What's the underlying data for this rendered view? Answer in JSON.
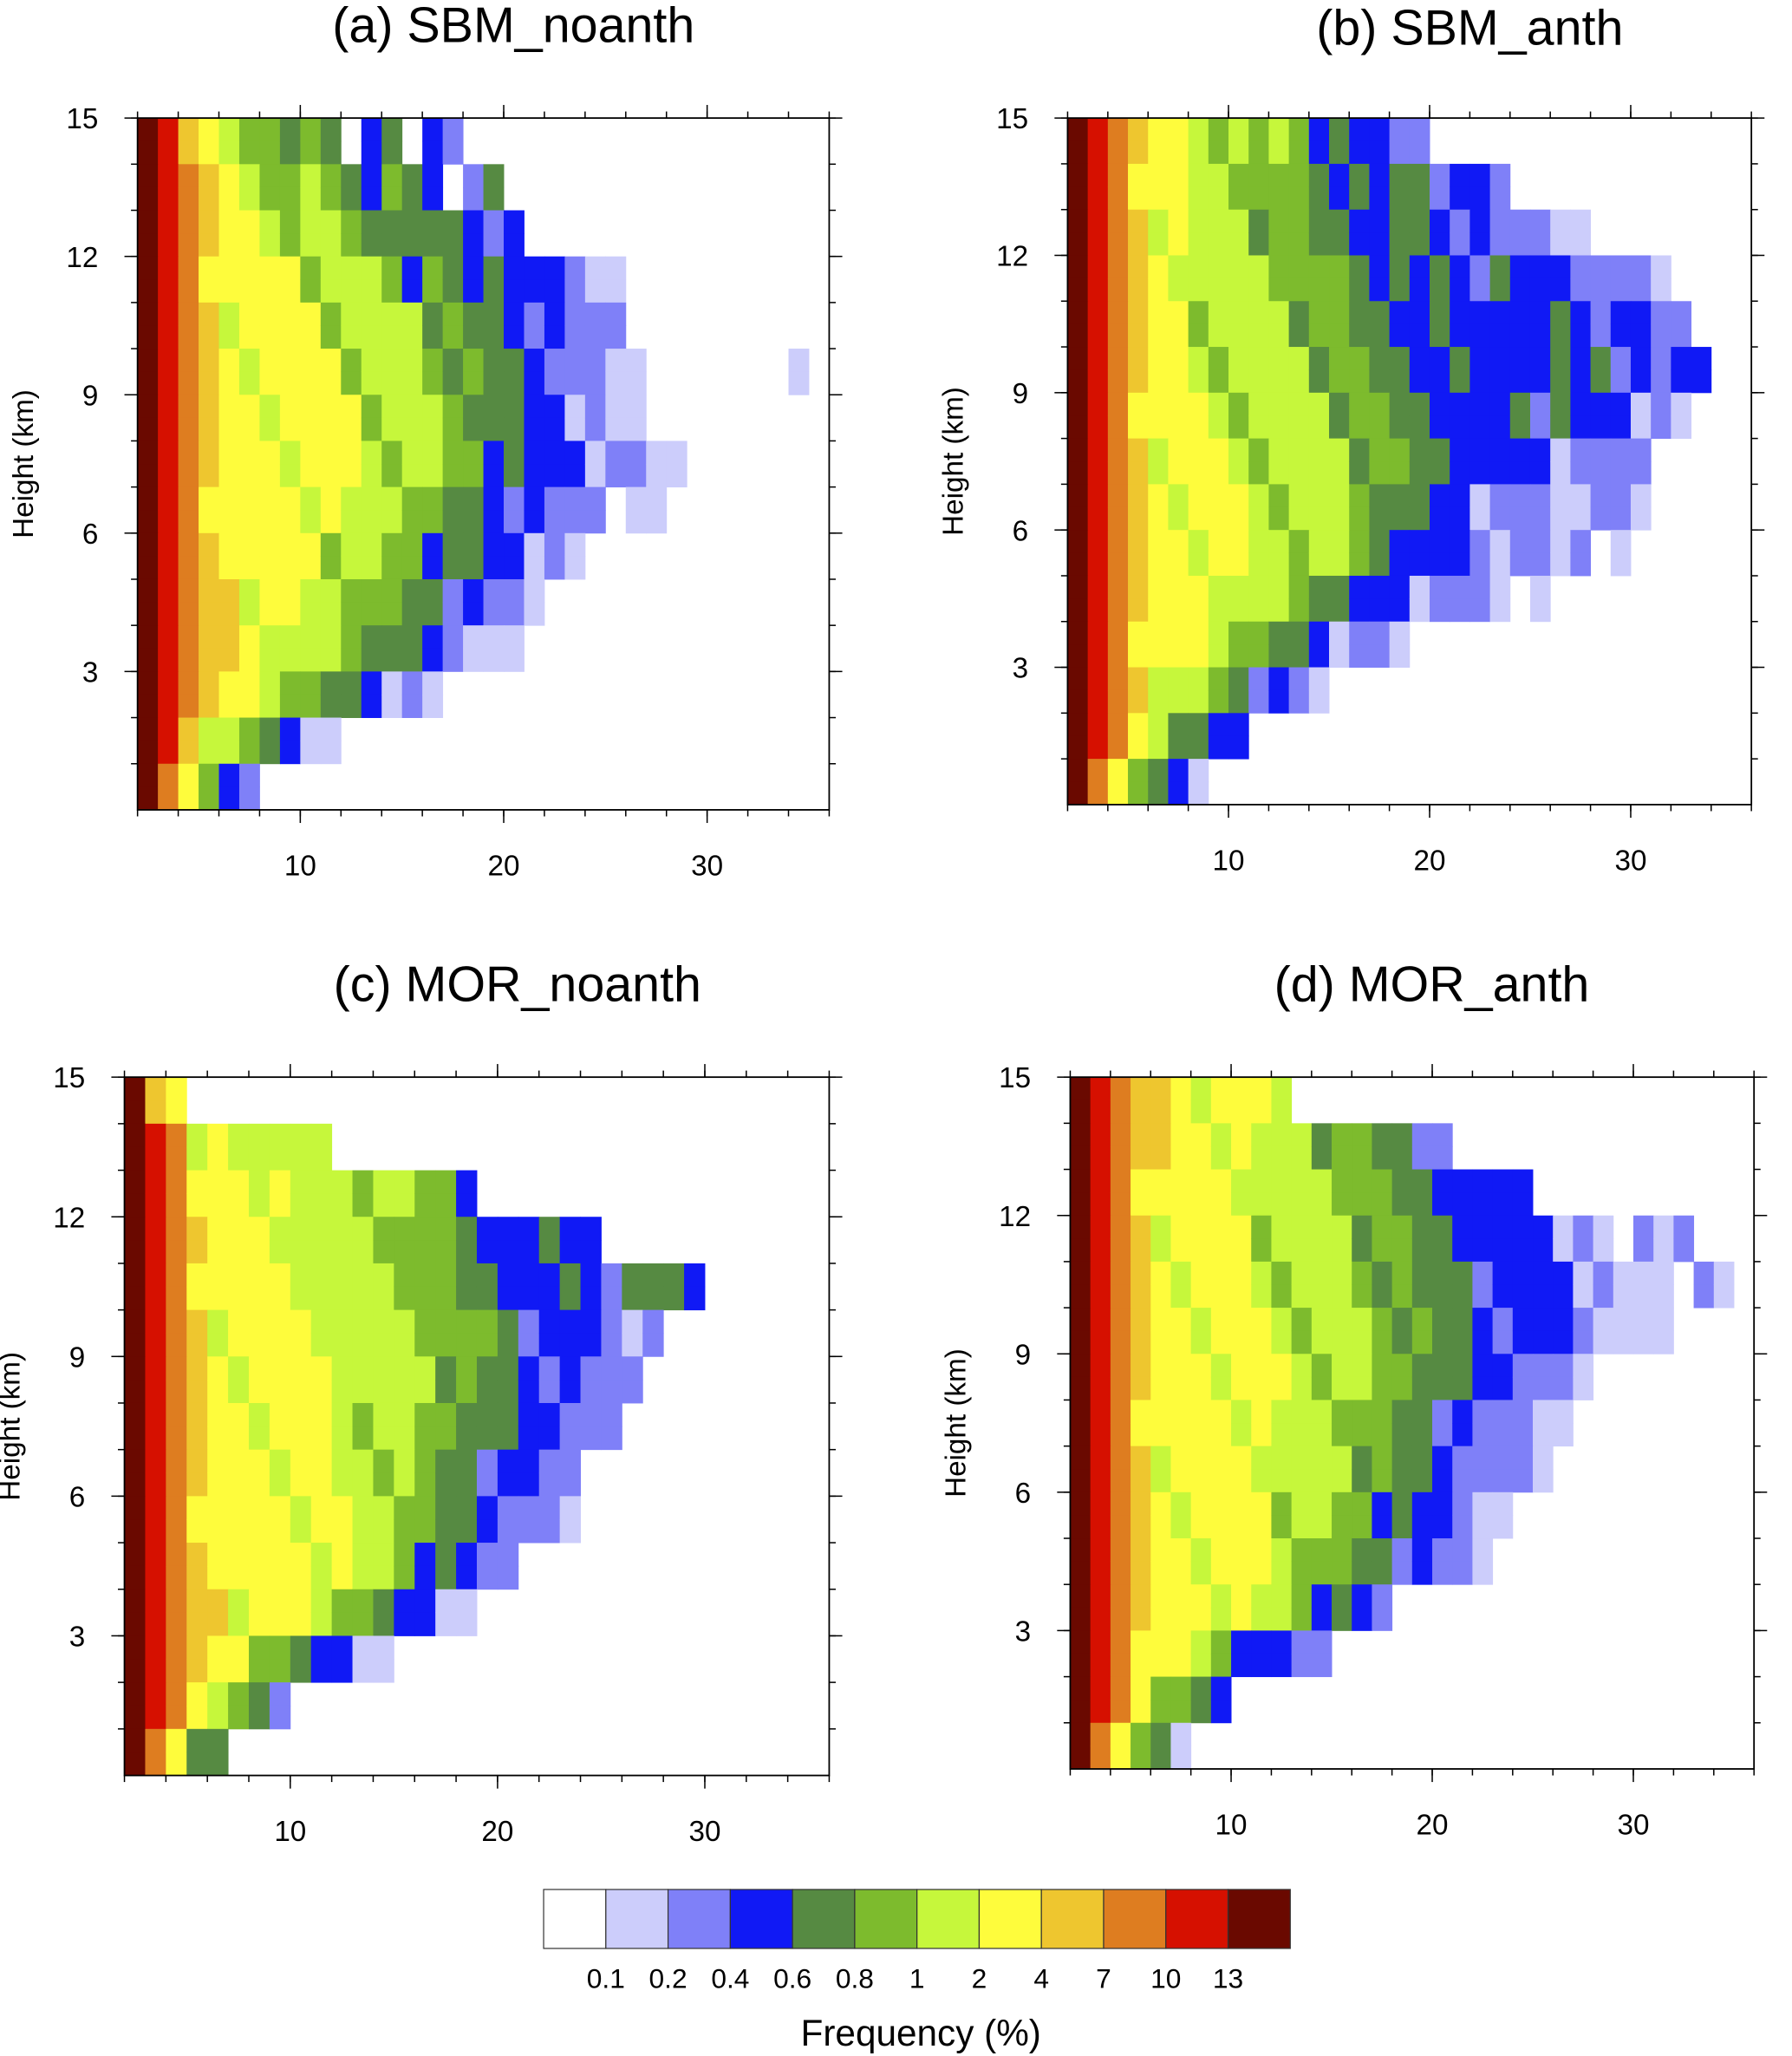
{
  "chart_data": {
    "type": "heatmap",
    "colorbar": {
      "title": "Frequency (%)",
      "levels": [
        "0.1",
        "0.2",
        "0.4",
        "0.6",
        "0.8",
        "1",
        "2",
        "4",
        "7",
        "10",
        "13"
      ],
      "colors": [
        "#ffffff",
        "#cccdfb",
        "#7f80f8",
        "#1019f5",
        "#568a42",
        "#7dbb2d",
        "#c6f73b",
        "#fefc3c",
        "#eec62f",
        "#de7d20",
        "#d61000",
        "#6a0900"
      ]
    },
    "encoding": "rows listed top (14-15 km) to bottom (0-1 km); each char is colour class index (0-9,a=10,b=11) for x bins of width 1 starting at x=2",
    "panels": [
      {
        "title": "(a) SBM_noanth",
        "ylabel": "Height (km)",
        "xlim": [
          2,
          36
        ],
        "ylim": [
          0,
          15
        ],
        "xticks": [
          "10",
          "20",
          "30"
        ],
        "yticks": [
          "3",
          "6",
          "9",
          "12",
          "15"
        ],
        "rows": [
          "ba876654540340330",
          "ba9876656544543034",
          "ba987766665454443330",
          "ba9877776666545434433212",
          "ba98777776666655443332221",
          "ba9877777766665554433221100000001",
          "ba98777777766665544332211",
          "ba9877777776666554433322211",
          "ba987777776666544333222111",
          "ba98877776665544433221",
          "ba988777666554433221",
          "ba98877666554432211",
          "ba9877665443221",
          "ba87654321",
          "b97542"
        ]
      },
      {
        "title": "(b) SBM_anth",
        "ylabel": "Height (km)",
        "xlim": [
          2,
          36
        ],
        "ylim": [
          0,
          15
        ],
        "xticks": [
          "10",
          "20",
          "30"
        ],
        "yticks": [
          "3",
          "6",
          "9",
          "12",
          "15"
        ],
        "rows": [
          "ba9877666565443323",
          "ba98776665554443443332",
          "ba987766655544434433322221",
          "ba9877666665554443433433332221",
          "ba98776666655544434334334333322",
          "ba987766666655544434334343433233",
          "ba98777666666555444333434333221",
          "ba9877776666665554443333222221",
          "ba987777766666554433222212221",
          "ba98777776666654433322221211",
          "ba9877776665543332222111",
          "ba987776654432221",
          "ba98766543321",
          "ba9765433",
          "b975432"
        ]
      },
      {
        "title": "(c) MOR_noanth",
        "ylabel": "Height (km)",
        "xlim": [
          2,
          36
        ],
        "ylim": [
          0,
          15
        ],
        "xticks": [
          "10",
          "20",
          "30"
        ],
        "yticks": [
          "3",
          "6",
          "9",
          "12",
          "15"
        ],
        "rows": [
          "b87",
          "ba96776666",
          "ba977777666666554",
          "ba9877776666655544334340",
          "ba98777776666655444334334443",
          "ba987777776666655543333222",
          "ba98777777766665544333222",
          "ba9877777766665554433322",
          "ba987777776666544333221",
          "ba98777777766654433221",
          "ba98877777766544322",
          "ba988777766543321",
          "ba98776543321",
          "ba976543",
          "b9754"
        ]
      },
      {
        "title": "(d) MOR_anth",
        "ylabel": "Height (km)",
        "xlim": [
          2,
          36
        ],
        "ylim": [
          0,
          15
        ],
        "xticks": [
          "10",
          "20",
          "30"
        ],
        "yticks": [
          "3",
          "6",
          "9",
          "12",
          "15"
        ],
        "rows": [
          "ba988777776",
          "ba98877776665554432",
          "ba987777766666554443333",
          "ba98777776666655544433332210222",
          "ba9877777666665554443333322111021",
          "ba98777777666665554433333221110",
          "ba987777777666655544333221",
          "ba98777777666655443322221",
          "ba9877777766665544332221",
          "ba98777777666554433221",
          "ba9877777766554433221",
          "ba98777776654432",
          "ba987765433221",
          "ba976543",
          "b97542"
        ]
      }
    ]
  }
}
